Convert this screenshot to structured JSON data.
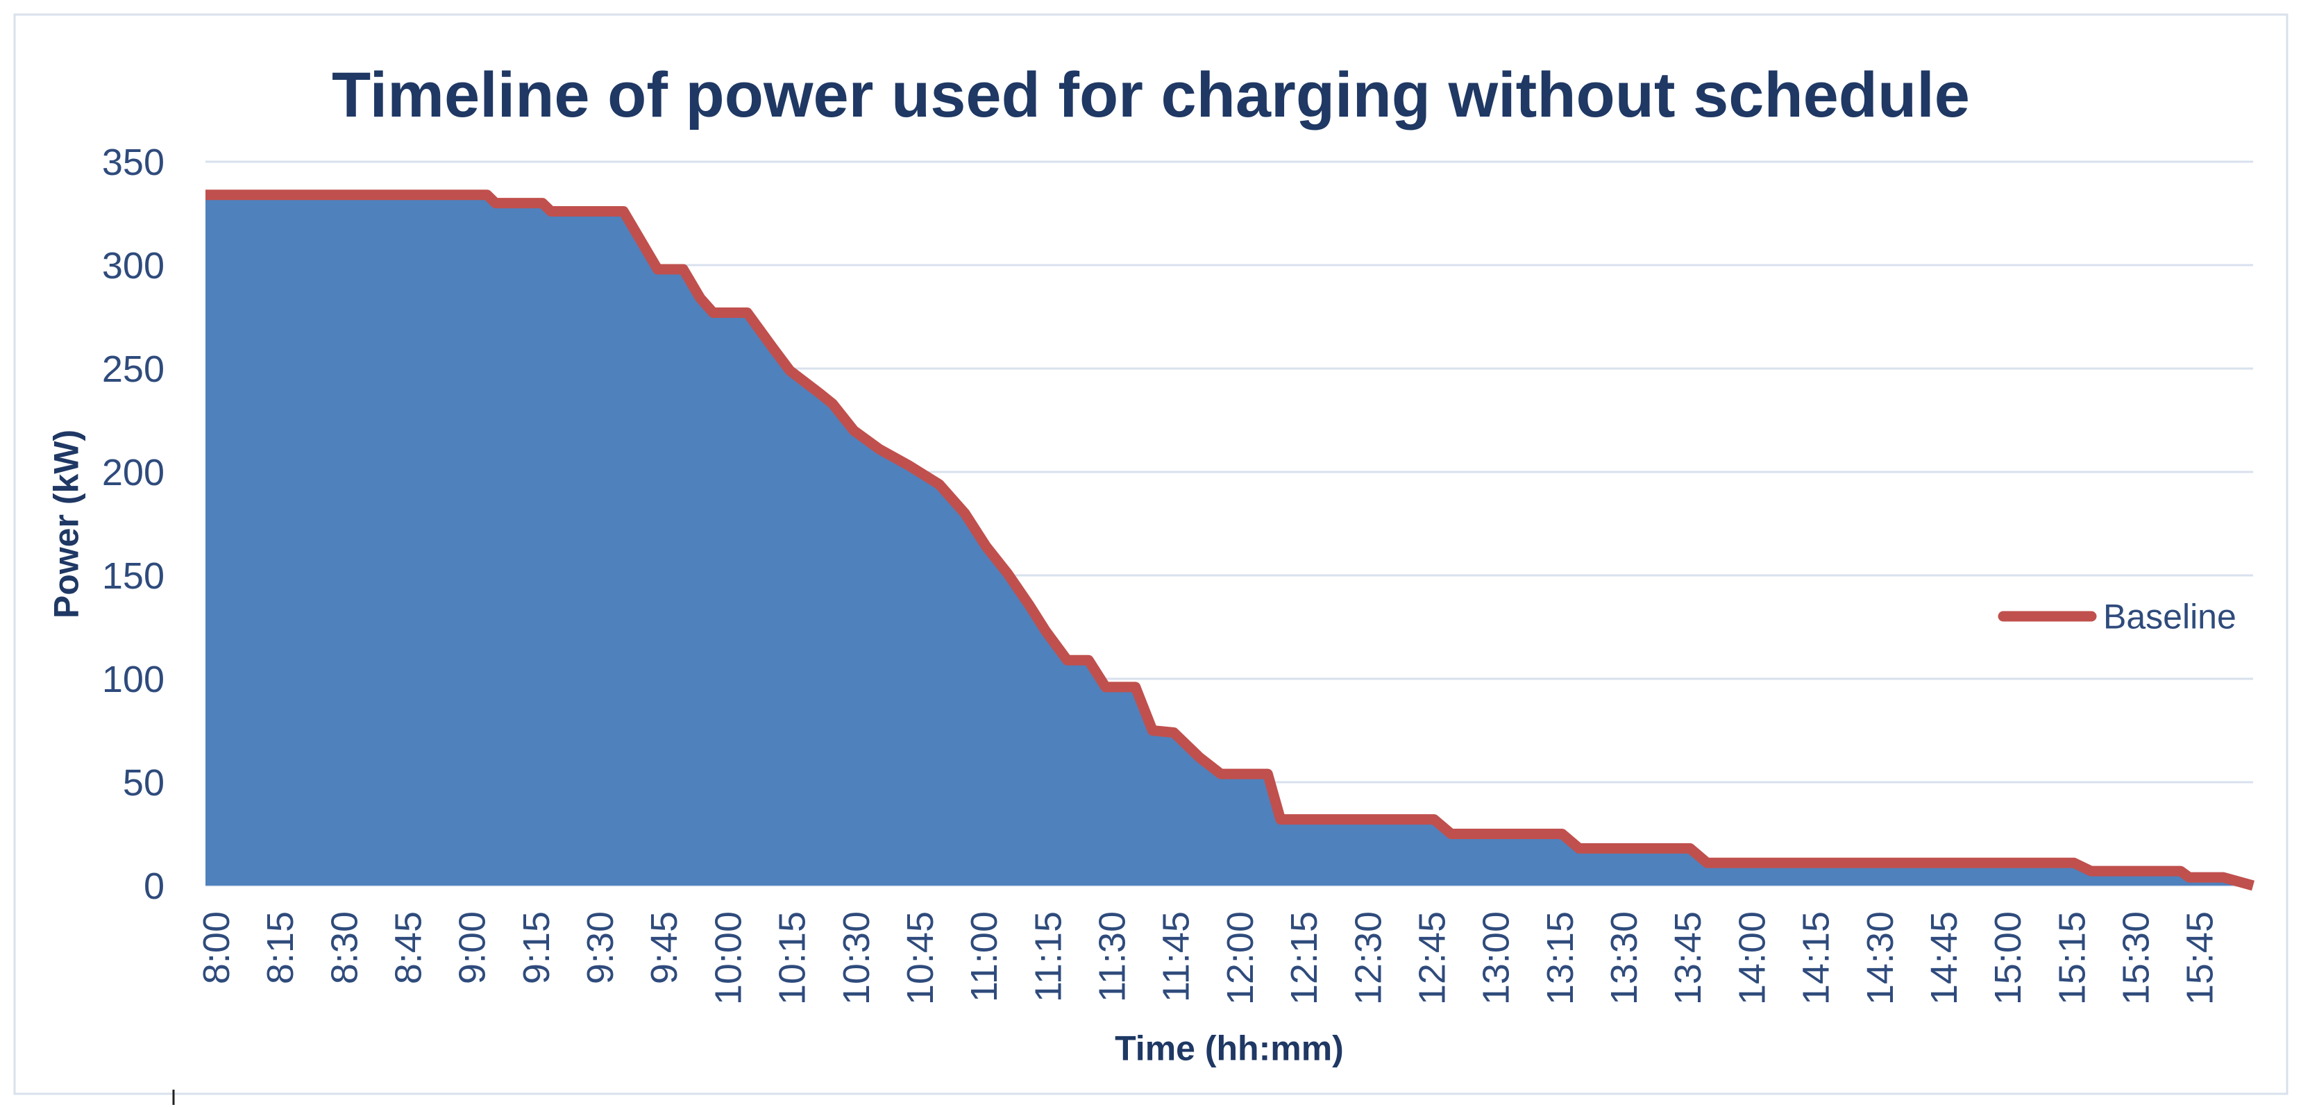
{
  "chart_data": {
    "type": "area",
    "title": "Timeline of power used for charging without schedule",
    "xlabel": "Time (hh:mm)",
    "ylabel": "Power (kW)",
    "x_tick_labels": [
      "8:00",
      "8:15",
      "8:30",
      "8:45",
      "9:00",
      "9:15",
      "9:30",
      "9:45",
      "10:00",
      "10:15",
      "10:30",
      "10:45",
      "11:00",
      "11:15",
      "11:30",
      "11:45",
      "12:00",
      "12:15",
      "12:30",
      "12:45",
      "13:00",
      "13:15",
      "13:30",
      "13:45",
      "14:00",
      "14:15",
      "14:30",
      "14:45",
      "15:00",
      "15:15",
      "15:30",
      "15:45"
    ],
    "xlim": [
      "8:00",
      "16:00"
    ],
    "y_ticks": [
      0,
      50,
      100,
      150,
      200,
      250,
      300,
      350
    ],
    "ylim": [
      0,
      350
    ],
    "grid": "horizontal",
    "legend": "right",
    "series": [
      {
        "name": "Baseline",
        "line_color": "#c0504d",
        "fill_color": "#4f81bd",
        "x": [
          "8:00",
          "9:06",
          "9:08",
          "9:19",
          "9:21",
          "9:38",
          "9:46",
          "9:52",
          "9:56",
          "9:59",
          "10:07",
          "10:13",
          "10:17",
          "10:24",
          "10:27",
          "10:32",
          "10:38",
          "10:45",
          "10:52",
          "10:58",
          "11:03",
          "11:08",
          "11:13",
          "11:17",
          "11:22",
          "11:27",
          "11:31",
          "11:38",
          "11:42",
          "11:47",
          "11:53",
          "11:58",
          "12:09",
          "12:12",
          "12:48",
          "12:52",
          "13:18",
          "13:22",
          "13:48",
          "13:52",
          "15:18",
          "15:22",
          "15:43",
          "15:45",
          "15:53",
          "16:00"
        ],
        "y": [
          334,
          334,
          330,
          330,
          326,
          326,
          298,
          298,
          284,
          277,
          277,
          260,
          249,
          238,
          233,
          220,
          211,
          203,
          194,
          180,
          164,
          151,
          136,
          123,
          109,
          109,
          96,
          96,
          75,
          74,
          62,
          54,
          54,
          32,
          32,
          25,
          25,
          18,
          18,
          11,
          11,
          7,
          7,
          4,
          4,
          0
        ]
      }
    ]
  }
}
